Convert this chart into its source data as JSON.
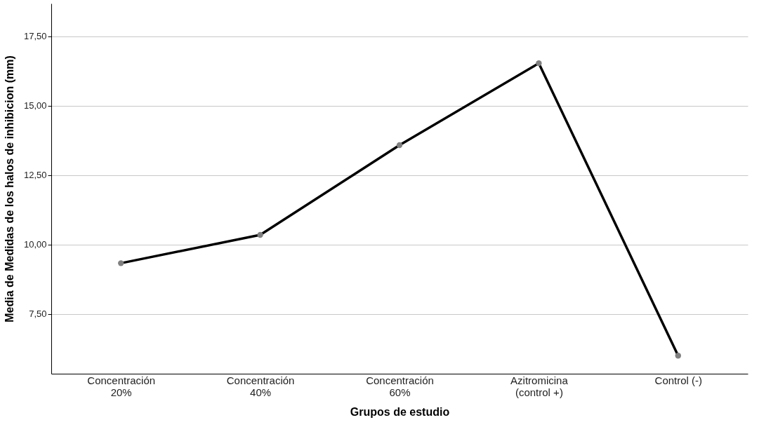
{
  "chart_data": {
    "type": "line",
    "xlabel": "Grupos de estudio",
    "ylabel": "Media de Medidas de los halos de inhibicion (mm)",
    "categories": [
      "Concentración\n20%",
      "Concentración\n40%",
      "Concentración\n60%",
      "Azitromicina\n(control +)",
      "Control (-)"
    ],
    "series": [
      {
        "color": "#000000",
        "values": [
          9.33,
          10.35,
          13.58,
          16.53,
          6.0
        ]
      }
    ],
    "ylim": [
      5.35,
      18.68
    ],
    "yticks": [
      {
        "value": 7.5,
        "label": "7,50"
      },
      {
        "value": 10,
        "label": "10,00"
      },
      {
        "value": 12.5,
        "label": "12,50"
      },
      {
        "value": 15,
        "label": "15,00"
      },
      {
        "value": 17.5,
        "label": "17,50"
      }
    ],
    "grid": "y",
    "marker": "circle",
    "line_style": "solid"
  }
}
